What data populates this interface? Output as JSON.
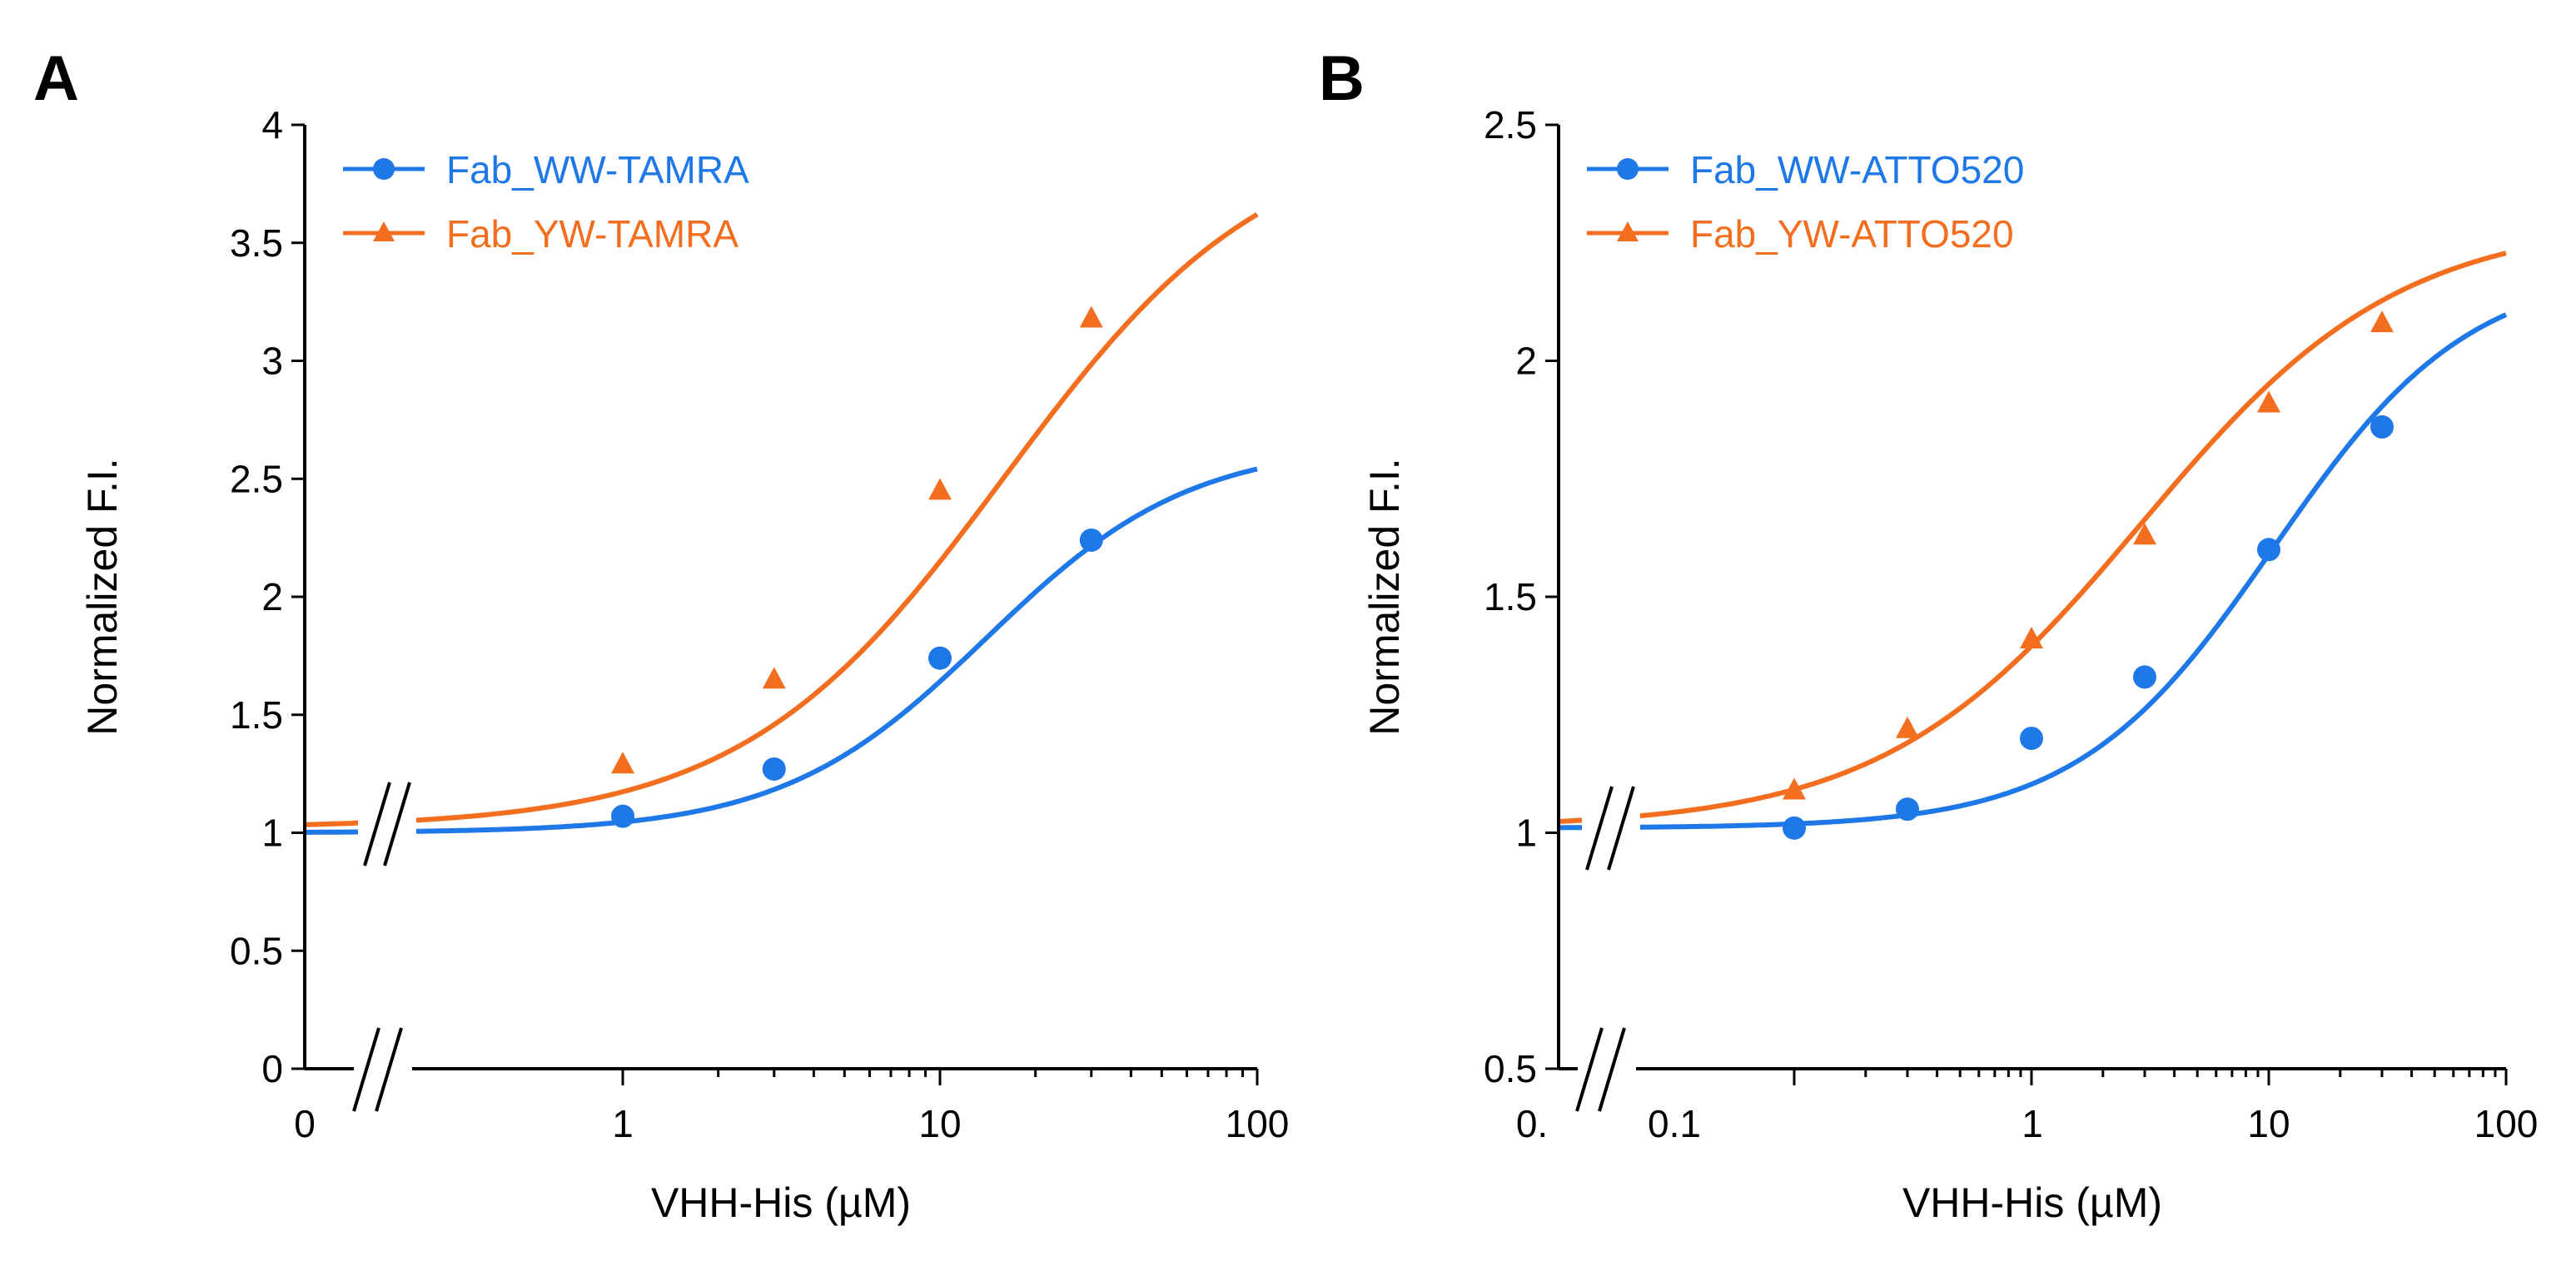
{
  "chart_data": [
    {
      "panel": "A",
      "type": "scatter",
      "xlabel": "VHH-His (µM)",
      "ylabel": "Normalized F.I.",
      "x_scale": "log",
      "x_break": true,
      "xlim": [
        0.1,
        100
      ],
      "ylim": [
        0,
        4
      ],
      "x_ticks": [
        "0",
        "1",
        "10",
        "100"
      ],
      "y_ticks": [
        "0",
        "0.5",
        "1",
        "1.5",
        "2",
        "2.5",
        "3",
        "3.5",
        "4"
      ],
      "legend_position": "top-left",
      "series": [
        {
          "name": "Fab_WW-TAMRA",
          "color": "#1f78e8",
          "marker": "circle",
          "x": [
            1,
            3,
            10,
            30
          ],
          "y": [
            1.07,
            1.27,
            1.74,
            2.24
          ],
          "fit": {
            "base": 1.0,
            "top": 2.65,
            "ec50": 14,
            "hill": 1.35
          }
        },
        {
          "name": "Fab_YW-TAMRA",
          "color": "#f36f1f",
          "marker": "triangle",
          "x": [
            1,
            3,
            10,
            30
          ],
          "y": [
            1.29,
            1.65,
            2.45,
            3.18
          ],
          "fit": {
            "base": 1.02,
            "top": 4.0,
            "ec50": 16,
            "hill": 1.05
          }
        }
      ]
    },
    {
      "panel": "B",
      "type": "scatter",
      "xlabel": "VHH-His (µM)",
      "ylabel": "Normalized F.I.",
      "x_scale": "log",
      "x_break": true,
      "xlim": [
        0.01,
        100
      ],
      "ylim": [
        0.5,
        2.5
      ],
      "x_ticks": [
        "0.",
        "0.1",
        "1",
        "10",
        "100"
      ],
      "y_ticks": [
        "0.5",
        "1",
        "1.5",
        "2",
        "2.5"
      ],
      "legend_position": "top-left",
      "series": [
        {
          "name": "Fab_WW-ATTO520",
          "color": "#1f78e8",
          "marker": "circle",
          "x": [
            0.1,
            0.3,
            1,
            3,
            10,
            30
          ],
          "y": [
            1.01,
            1.05,
            1.2,
            1.33,
            1.6,
            1.86
          ],
          "fit": {
            "base": 1.01,
            "top": 2.2,
            "ec50": 10.5,
            "hill": 1.05
          }
        },
        {
          "name": "Fab_YW-ATTO520",
          "color": "#f36f1f",
          "marker": "triangle",
          "x": [
            0.1,
            0.3,
            1,
            3,
            10,
            30
          ],
          "y": [
            1.09,
            1.22,
            1.41,
            1.63,
            1.91,
            2.08
          ],
          "fit": {
            "base": 1.01,
            "top": 2.3,
            "ec50": 2.9,
            "hill": 0.8
          }
        }
      ]
    }
  ]
}
